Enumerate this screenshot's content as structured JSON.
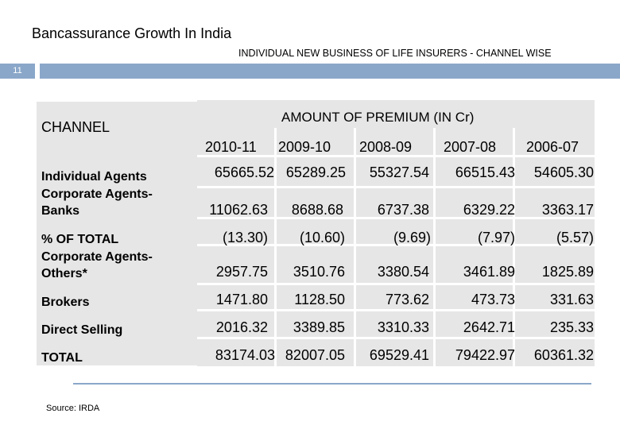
{
  "header": {
    "title": "Bancassurance Growth In India",
    "subtitle": "INDIVIDUAL NEW BUSINESS OF LIFE INSURERS - CHANNEL WISE",
    "slide_number": "11"
  },
  "table": {
    "channel_header": "CHANNEL",
    "amount_header": "AMOUNT OF PREMIUM (IN Cr)",
    "years": [
      "2010-11",
      "2009-10",
      "2008-09",
      "2007-08",
      "2006-07"
    ],
    "row_labels": {
      "individual": "Individual Agents",
      "corp_banks": "Corporate Agents-Banks",
      "pct": "% OF TOTAL",
      "corp_others": "Corporate Agents-Others*",
      "brokers": "Brokers",
      "direct": "Direct Selling",
      "total": "TOTAL"
    },
    "rows": [
      [
        "65665.52",
        "65289.25",
        "55327.54",
        "66515.43",
        "54605.30"
      ],
      [
        "11062.63",
        "8688.68",
        "6737.38",
        "6329.22",
        "3363.17"
      ],
      [
        "(13.30)",
        "(10.60)",
        "(9.69)",
        "(7.97)",
        "(5.57)"
      ],
      [
        "2957.75",
        "3510.76",
        "3380.54",
        "3461.89",
        "1825.89"
      ],
      [
        "1471.80",
        "1128.50",
        "773.62",
        "473.73",
        "331.63"
      ],
      [
        "2016.32",
        "3389.85",
        "3310.33",
        "2642.71",
        "235.33"
      ],
      [
        "83174.03",
        "82007.05",
        "69529.41",
        "79422.97",
        "60361.32"
      ]
    ]
  },
  "footer": {
    "source": "Source: IRDA"
  },
  "colors": {
    "accent": "#8aa7c9",
    "cell_bg": "#e6e6e6"
  }
}
